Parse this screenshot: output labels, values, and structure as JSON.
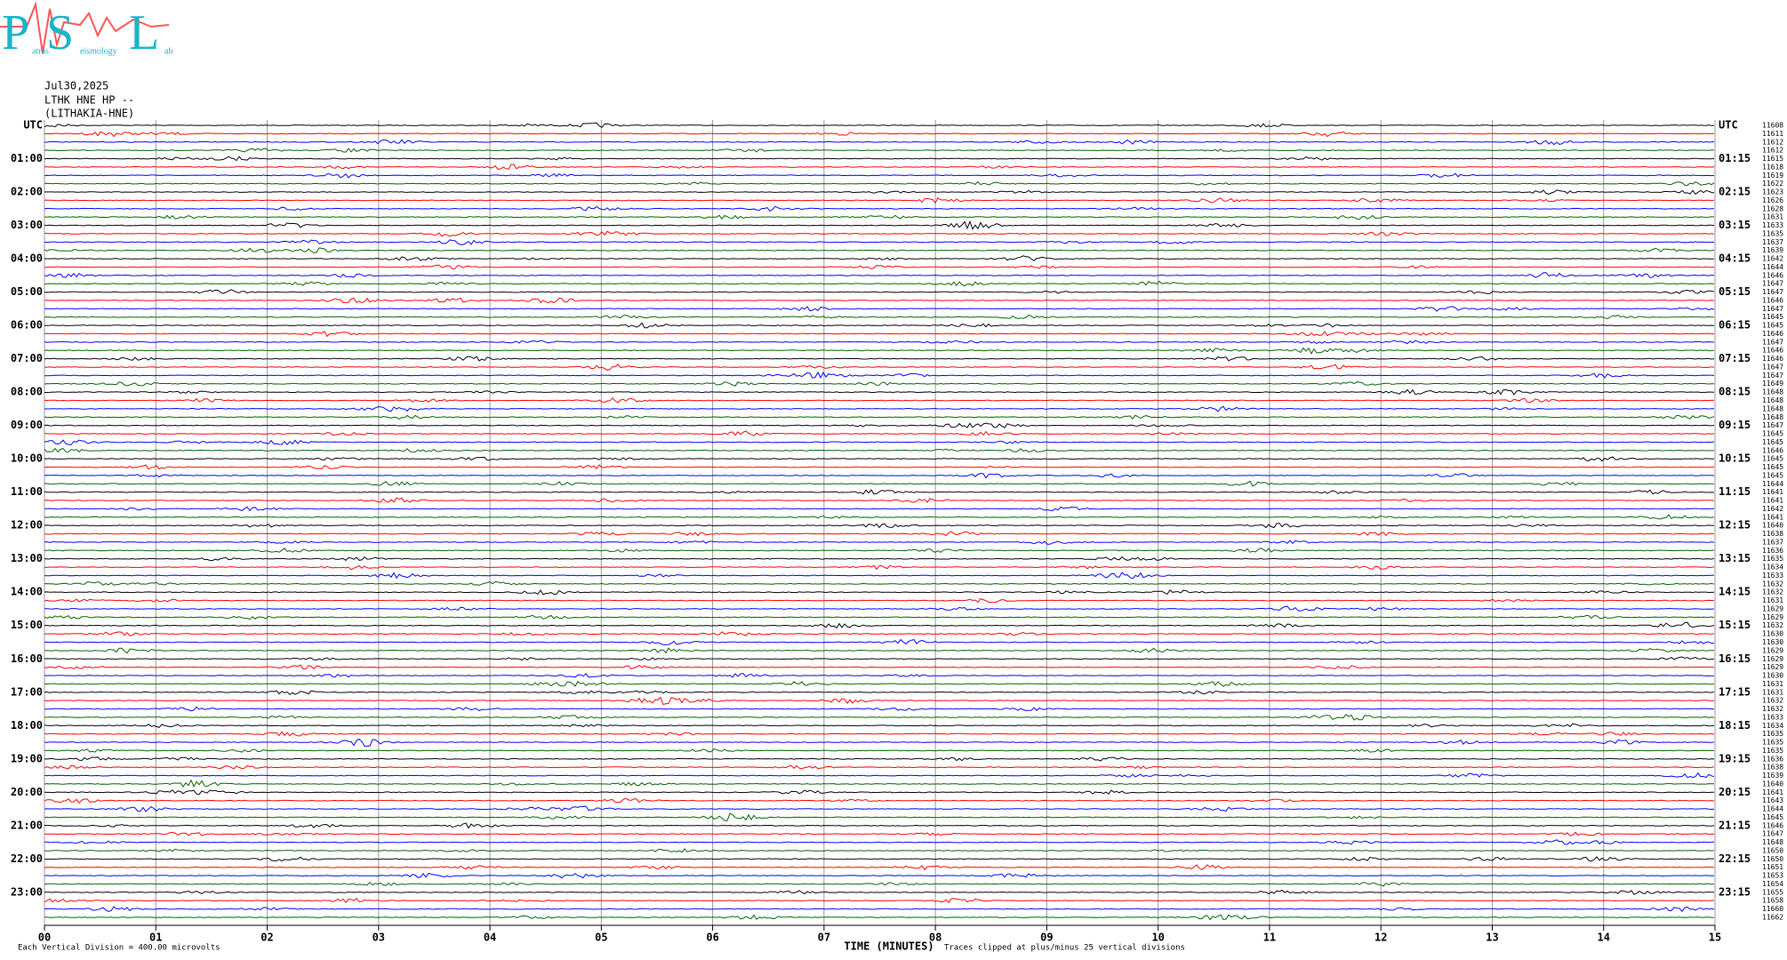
{
  "logo": {
    "big": [
      "P",
      "S",
      "L"
    ],
    "small": [
      "atras",
      "eismology",
      "ab"
    ]
  },
  "header": {
    "date": "Jul30,2025",
    "station": "LTHK HNE HP --",
    "location": "(LITHAKIA-HNE)"
  },
  "left_labels": [
    "UTC",
    "01:00",
    "02:00",
    "03:00",
    "04:00",
    "05:00",
    "06:00",
    "07:00",
    "08:00",
    "09:00",
    "10:00",
    "11:00",
    "12:00",
    "13:00",
    "14:00",
    "15:00",
    "16:00",
    "17:00",
    "18:00",
    "19:00",
    "20:00",
    "21:00",
    "22:00",
    "23:00"
  ],
  "right_labels": [
    "UTC",
    "01:15",
    "02:15",
    "03:15",
    "04:15",
    "05:15",
    "06:15",
    "07:15",
    "08:15",
    "09:15",
    "10:15",
    "11:15",
    "12:15",
    "13:15",
    "14:15",
    "15:15",
    "16:15",
    "17:15",
    "18:15",
    "19:15",
    "20:15",
    "21:15",
    "22:15",
    "23:15"
  ],
  "trace_labels": [
    11608,
    11611,
    11612,
    11612,
    11615,
    11618,
    11619,
    11622,
    11623,
    11626,
    11628,
    11631,
    11633,
    11635,
    11637,
    11639,
    11642,
    11644,
    11646,
    11647,
    11647,
    11646,
    11647,
    11645,
    11645,
    11646,
    11647,
    11646,
    11646,
    11647,
    11647,
    11649,
    11648,
    11648,
    11648,
    11648,
    11647,
    11645,
    11645,
    11646,
    11645,
    11645,
    11645,
    11644,
    11641,
    11641,
    11642,
    11641,
    11640,
    11638,
    11637,
    11636,
    11635,
    11634,
    11633,
    11632,
    11632,
    11631,
    11629,
    11629,
    11632,
    11630,
    11630,
    11629,
    11629,
    11629,
    11630,
    11631,
    11631,
    11632,
    11632,
    11633,
    11634,
    11635,
    11635,
    11635,
    11636,
    11638,
    11639,
    11640,
    11641,
    11643,
    11644,
    11645,
    11646,
    11647,
    11648,
    11650,
    11650,
    11651,
    11653,
    11654,
    11655,
    11658,
    11660,
    11662
  ],
  "trace_colors": [
    "#000000",
    "#ff0000",
    "#0000ff",
    "#006400"
  ],
  "minute_labels": [
    "00",
    "01",
    "02",
    "03",
    "04",
    "05",
    "06",
    "07",
    "08",
    "09",
    "10",
    "11",
    "12",
    "13",
    "14",
    "15"
  ],
  "x_axis_label": "TIME (MINUTES)",
  "footer": {
    "scale": "Each Vertical Division =  400.00 microvolts",
    "clip": "Traces clipped at plus/minus 25 vertical divisions"
  }
}
